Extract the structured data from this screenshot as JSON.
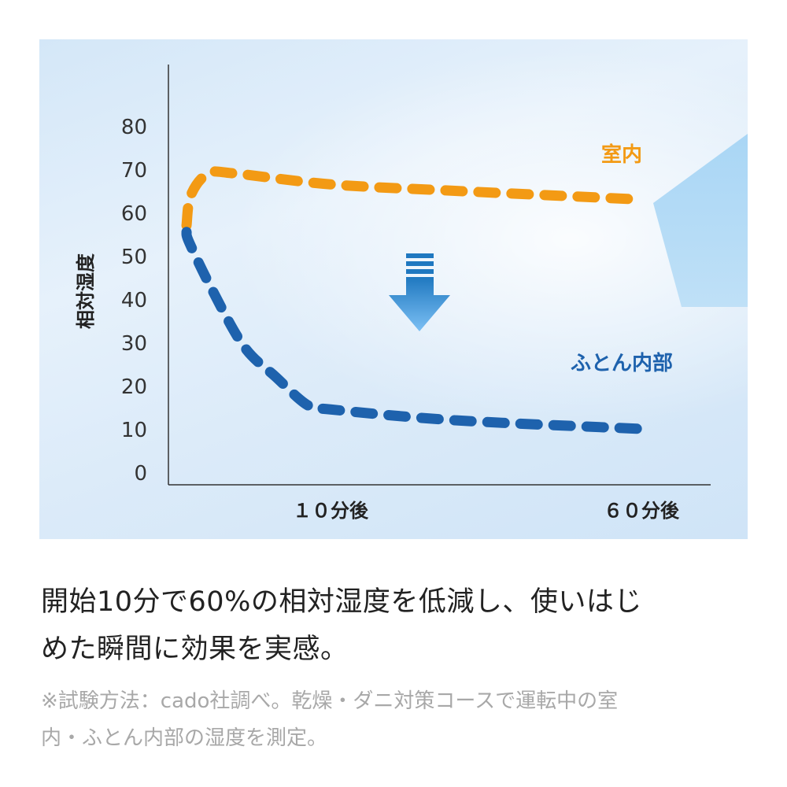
{
  "chart_data": {
    "type": "line",
    "ylabel": "相対湿度",
    "ylim": [
      0,
      80
    ],
    "yticks": [
      0,
      10,
      20,
      30,
      40,
      50,
      60,
      70,
      80
    ],
    "xticks": [
      {
        "value": 10,
        "label": "１０分後"
      },
      {
        "value": 60,
        "label": "６０分後"
      }
    ],
    "xlim_minutes": [
      0,
      60
    ],
    "grid": false,
    "line_style": "dashed",
    "series": [
      {
        "name": "室内",
        "color": "#f39a14",
        "x": [
          0,
          0.3,
          1.5,
          3.4,
          10,
          30,
          60
        ],
        "y": [
          57,
          64,
          69,
          69,
          66.5,
          65,
          63
        ]
      },
      {
        "name": "ふとん内部",
        "color": "#1e62ad",
        "x": [
          0,
          0.2,
          1.8,
          4,
          6.2,
          8.4,
          10,
          30,
          60
        ],
        "y": [
          55.5,
          53,
          42,
          29,
          22,
          15.5,
          14.5,
          12,
          10
        ]
      }
    ],
    "annotation": {
      "type": "down-arrow",
      "color": "#3a8fd6"
    }
  },
  "text": {
    "headline_line1": "開始10分で60%の相対湿度を低減し、使いはじ",
    "headline_line2": "めた瞬間に効果を実感。",
    "note_line1": "※試験方法：cado社調べ。乾燥・ダニ対策コースで運転中の室",
    "note_line2": "内・ふとん内部の湿度を測定。"
  }
}
